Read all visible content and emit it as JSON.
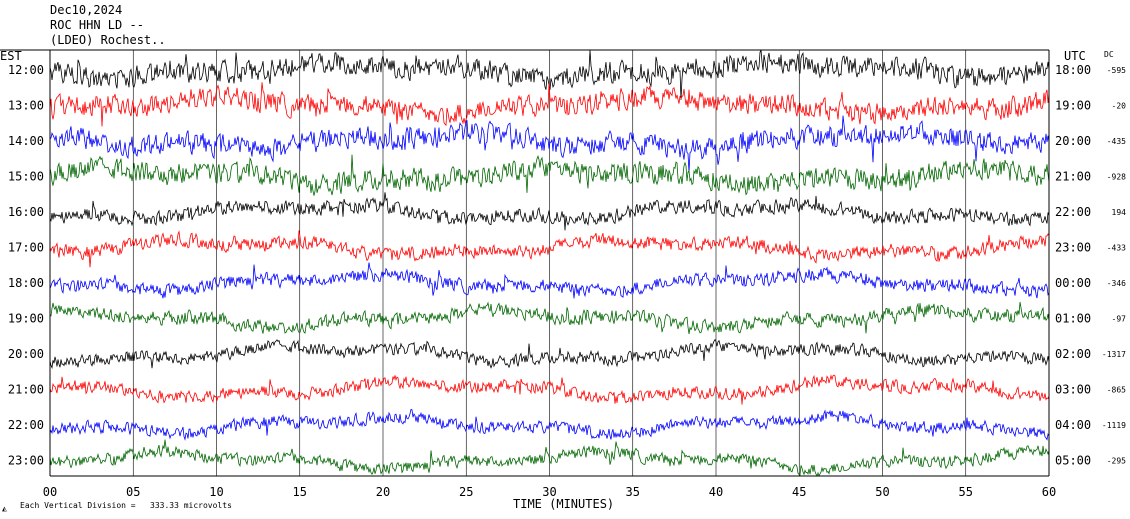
{
  "header": {
    "date": "Dec10,2024",
    "station": "ROC HHN LD --",
    "network": "(LDEO) Rochest.."
  },
  "left_axis_title": "EST",
  "right_axis_title": "UTC",
  "dc_title": "DC",
  "colors": {
    "black": "#000000",
    "red": "#ff0000",
    "blue": "#0000ff",
    "green": "#006600",
    "grid": "#000000"
  },
  "chart_data": {
    "type": "line",
    "xlabel": "TIME (MINUTES)",
    "xlim": [
      0,
      60
    ],
    "x_ticks": [
      "00",
      "05",
      "10",
      "15",
      "20",
      "25",
      "30",
      "35",
      "40",
      "45",
      "50",
      "55",
      "60"
    ],
    "color_cycle": [
      "black",
      "red",
      "blue",
      "green"
    ],
    "rows": [
      {
        "est": "12:00",
        "utc": "18:00",
        "dc": "-595"
      },
      {
        "est": "13:00",
        "utc": "19:00",
        "dc": "-20"
      },
      {
        "est": "14:00",
        "utc": "20:00",
        "dc": "-435"
      },
      {
        "est": "15:00",
        "utc": "21:00",
        "dc": "-928"
      },
      {
        "est": "16:00",
        "utc": "22:00",
        "dc": "194"
      },
      {
        "est": "17:00",
        "utc": "23:00",
        "dc": "-433"
      },
      {
        "est": "18:00",
        "utc": "00:00",
        "dc": "-346"
      },
      {
        "est": "19:00",
        "utc": "01:00",
        "dc": "-97"
      },
      {
        "est": "20:00",
        "utc": "02:00",
        "dc": "-1317"
      },
      {
        "est": "21:00",
        "utc": "03:00",
        "dc": "-865"
      },
      {
        "est": "22:00",
        "utc": "04:00",
        "dc": "-1119"
      },
      {
        "est": "23:00",
        "utc": "05:00",
        "dc": "-295"
      }
    ]
  },
  "footer": {
    "scale_prefix": "Each Vertical Division =",
    "scale_value": "333.33 microvolts"
  }
}
